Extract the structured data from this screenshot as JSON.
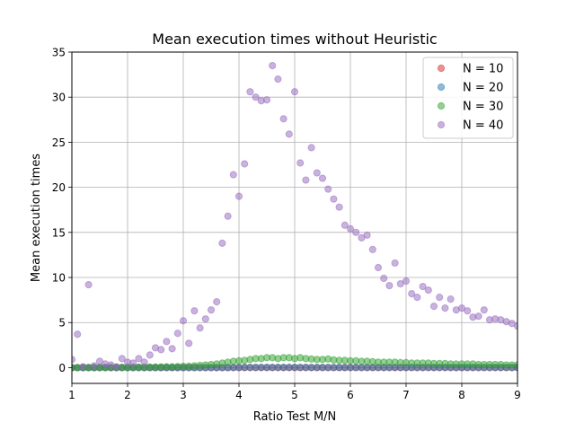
{
  "chart_data": {
    "type": "scatter",
    "title": "Mean execution times without Heuristic",
    "xlabel": "Ratio Test M/N",
    "ylabel": "Mean execution times",
    "xlim": [
      1,
      9
    ],
    "ylim": [
      -1.75,
      35
    ],
    "xticks": [
      1,
      2,
      3,
      4,
      5,
      6,
      7,
      8,
      9
    ],
    "yticks": [
      0,
      5,
      10,
      15,
      20,
      25,
      30,
      35
    ],
    "grid": true,
    "legend_position": "top-right",
    "series": [
      {
        "name": "N = 10",
        "color": "#d62728",
        "x": [
          1.0,
          1.1,
          1.2,
          1.3,
          1.4,
          1.5,
          1.6,
          1.7,
          1.8,
          1.9,
          2.0,
          2.1,
          2.2,
          2.3,
          2.4,
          2.5,
          2.6,
          2.7,
          2.8,
          2.9,
          3.0,
          3.1,
          3.2,
          3.3,
          3.4,
          3.5,
          3.6,
          3.7,
          3.8,
          3.9,
          4.0,
          4.1,
          4.2,
          4.3,
          4.4,
          4.5,
          4.6,
          4.7,
          4.8,
          4.9,
          5.0,
          5.1,
          5.2,
          5.3,
          5.4,
          5.5,
          5.6,
          5.7,
          5.8,
          5.9,
          6.0,
          6.1,
          6.2,
          6.3,
          6.4,
          6.5,
          6.6,
          6.7,
          6.8,
          6.9,
          7.0,
          7.1,
          7.2,
          7.3,
          7.4,
          7.5,
          7.6,
          7.7,
          7.8,
          7.9,
          8.0,
          8.1,
          8.2,
          8.3,
          8.4,
          8.5,
          8.6,
          8.7,
          8.8,
          8.9,
          9.0
        ],
        "y": [
          0,
          0,
          0,
          0,
          0,
          0,
          0,
          0,
          0,
          0,
          0,
          0,
          0,
          0,
          0,
          0,
          0,
          0,
          0,
          0,
          0,
          0,
          0,
          0,
          0,
          0,
          0,
          0,
          0,
          0,
          0,
          0,
          0,
          0,
          0,
          0,
          0,
          0,
          0,
          0,
          0,
          0,
          0,
          0,
          0,
          0,
          0,
          0,
          0,
          0,
          0,
          0,
          0,
          0,
          0,
          0,
          0,
          0,
          0,
          0,
          0,
          0,
          0,
          0,
          0,
          0,
          0,
          0,
          0,
          0,
          0,
          0,
          0,
          0,
          0,
          0,
          0,
          0,
          0,
          0,
          0
        ]
      },
      {
        "name": "N = 20",
        "color": "#1f77b4",
        "x": [
          1.0,
          1.1,
          1.2,
          1.3,
          1.4,
          1.5,
          1.6,
          1.7,
          1.8,
          1.9,
          2.0,
          2.1,
          2.2,
          2.3,
          2.4,
          2.5,
          2.6,
          2.7,
          2.8,
          2.9,
          3.0,
          3.1,
          3.2,
          3.3,
          3.4,
          3.5,
          3.6,
          3.7,
          3.8,
          3.9,
          4.0,
          4.1,
          4.2,
          4.3,
          4.4,
          4.5,
          4.6,
          4.7,
          4.8,
          4.9,
          5.0,
          5.1,
          5.2,
          5.3,
          5.4,
          5.5,
          5.6,
          5.7,
          5.8,
          5.9,
          6.0,
          6.1,
          6.2,
          6.3,
          6.4,
          6.5,
          6.6,
          6.7,
          6.8,
          6.9,
          7.0,
          7.1,
          7.2,
          7.3,
          7.4,
          7.5,
          7.6,
          7.7,
          7.8,
          7.9,
          8.0,
          8.1,
          8.2,
          8.3,
          8.4,
          8.5,
          8.6,
          8.7,
          8.8,
          8.9,
          9.0
        ],
        "y": [
          0,
          0,
          0,
          0,
          0,
          0,
          0,
          0,
          0,
          0,
          0,
          0,
          0,
          0,
          0,
          0,
          0,
          0,
          0,
          0,
          0,
          0,
          0,
          0,
          0,
          0,
          0,
          0,
          0,
          0.02,
          0.02,
          0.03,
          0.03,
          0.03,
          0.03,
          0.03,
          0.03,
          0.03,
          0.03,
          0.03,
          0.03,
          0.03,
          0.03,
          0.02,
          0.02,
          0.02,
          0.02,
          0.02,
          0.02,
          0.02,
          0.02,
          0.02,
          0.02,
          0.02,
          0.02,
          0.02,
          0.02,
          0.02,
          0.02,
          0.02,
          0.02,
          0.02,
          0.02,
          0.02,
          0.02,
          0.02,
          0.02,
          0.02,
          0.02,
          0.02,
          0.02,
          0.02,
          0.02,
          0.02,
          0.02,
          0.02,
          0.02,
          0.02,
          0.02,
          0.02,
          0.02
        ]
      },
      {
        "name": "N = 30",
        "color": "#2ca02c",
        "x": [
          1.0,
          1.1,
          1.2,
          1.3,
          1.4,
          1.5,
          1.6,
          1.7,
          1.8,
          1.9,
          2.0,
          2.1,
          2.2,
          2.3,
          2.4,
          2.5,
          2.6,
          2.7,
          2.8,
          2.9,
          3.0,
          3.1,
          3.2,
          3.3,
          3.4,
          3.5,
          3.6,
          3.7,
          3.8,
          3.9,
          4.0,
          4.1,
          4.2,
          4.3,
          4.4,
          4.5,
          4.6,
          4.7,
          4.8,
          4.9,
          5.0,
          5.1,
          5.2,
          5.3,
          5.4,
          5.5,
          5.6,
          5.7,
          5.8,
          5.9,
          6.0,
          6.1,
          6.2,
          6.3,
          6.4,
          6.5,
          6.6,
          6.7,
          6.8,
          6.9,
          7.0,
          7.1,
          7.2,
          7.3,
          7.4,
          7.5,
          7.6,
          7.7,
          7.8,
          7.9,
          8.0,
          8.1,
          8.2,
          8.3,
          8.4,
          8.5,
          8.6,
          8.7,
          8.8,
          8.9,
          9.0
        ],
        "y": [
          0,
          0,
          0,
          0.01,
          0.01,
          0.01,
          0.02,
          0.02,
          0.02,
          0.03,
          0.03,
          0.04,
          0.04,
          0.05,
          0.06,
          0.07,
          0.08,
          0.09,
          0.1,
          0.12,
          0.14,
          0.16,
          0.2,
          0.25,
          0.3,
          0.35,
          0.4,
          0.5,
          0.6,
          0.7,
          0.75,
          0.8,
          0.9,
          1.0,
          1.0,
          1.1,
          1.1,
          1.0,
          1.1,
          1.1,
          1.0,
          1.1,
          1.0,
          0.95,
          0.9,
          0.9,
          0.95,
          0.85,
          0.8,
          0.8,
          0.75,
          0.75,
          0.7,
          0.7,
          0.65,
          0.6,
          0.6,
          0.6,
          0.6,
          0.55,
          0.55,
          0.5,
          0.5,
          0.5,
          0.5,
          0.45,
          0.45,
          0.45,
          0.4,
          0.4,
          0.4,
          0.4,
          0.4,
          0.35,
          0.35,
          0.35,
          0.35,
          0.35,
          0.3,
          0.3,
          0.3
        ]
      },
      {
        "name": "N = 40",
        "color": "#9467bd",
        "x": [
          1.0,
          1.1,
          1.2,
          1.3,
          1.4,
          1.5,
          1.6,
          1.7,
          1.8,
          1.9,
          2.0,
          2.1,
          2.2,
          2.3,
          2.4,
          2.5,
          2.6,
          2.7,
          2.8,
          2.9,
          3.0,
          3.1,
          3.2,
          3.3,
          3.4,
          3.5,
          3.6,
          3.7,
          3.8,
          3.9,
          4.0,
          4.1,
          4.2,
          4.3,
          4.4,
          4.5,
          4.6,
          4.7,
          4.8,
          4.9,
          5.0,
          5.1,
          5.2,
          5.3,
          5.4,
          5.5,
          5.6,
          5.7,
          5.8,
          5.9,
          6.0,
          6.1,
          6.2,
          6.3,
          6.4,
          6.5,
          6.6,
          6.7,
          6.8,
          6.9,
          7.0,
          7.1,
          7.2,
          7.3,
          7.4,
          7.5,
          7.6,
          7.7,
          7.8,
          7.9,
          8.0,
          8.1,
          8.2,
          8.3,
          8.4,
          8.5,
          8.6,
          8.7,
          8.8,
          8.9,
          9.0
        ],
        "y": [
          0.9,
          3.7,
          0.1,
          9.2,
          0.2,
          0.7,
          0.4,
          0.3,
          0.1,
          1.0,
          0.6,
          0.5,
          1.0,
          0.6,
          1.4,
          2.2,
          2.0,
          2.9,
          2.1,
          3.8,
          5.2,
          2.7,
          6.3,
          4.4,
          5.4,
          6.4,
          7.3,
          13.8,
          16.8,
          21.4,
          19.0,
          22.6,
          30.6,
          30.0,
          29.6,
          29.7,
          33.5,
          32.0,
          27.6,
          25.9,
          30.6,
          22.7,
          20.8,
          24.4,
          21.6,
          21.0,
          19.8,
          18.7,
          17.8,
          15.8,
          15.4,
          15.0,
          14.4,
          14.7,
          13.1,
          11.1,
          9.9,
          9.1,
          11.6,
          9.3,
          9.6,
          8.2,
          7.8,
          9.0,
          8.6,
          6.8,
          7.8,
          6.6,
          7.6,
          6.4,
          6.6,
          6.3,
          5.6,
          5.7,
          6.4,
          5.3,
          5.4,
          5.3,
          5.1,
          4.9,
          4.6
        ]
      }
    ]
  }
}
